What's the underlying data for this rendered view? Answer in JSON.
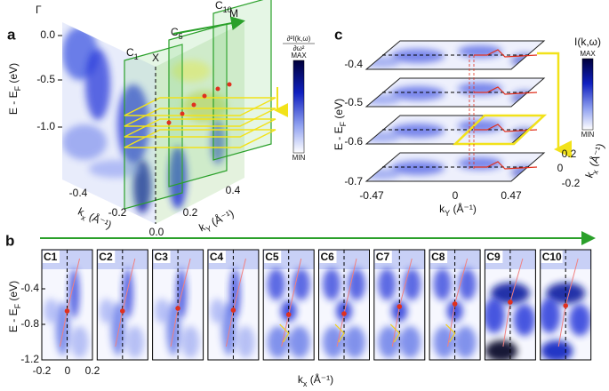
{
  "panel_a": {
    "label": "a",
    "points": [
      "Γ",
      "X",
      "M"
    ],
    "cuts": [
      {
        "text": "C",
        "sub": "1"
      },
      {
        "text": "C",
        "sub": "5"
      },
      {
        "text": "C",
        "sub": "10"
      }
    ],
    "y_label": {
      "text": "E - E",
      "sub": "F",
      "unit": " (eV)"
    },
    "y_ticks": [
      "0.0",
      "-0.5",
      "-1.0"
    ],
    "kx_label": {
      "text": "k",
      "sub": "x",
      "unit": " (Å⁻¹)"
    },
    "kx_ticks": [
      "-0.4",
      "-0.2",
      "0.0"
    ],
    "ky_label": {
      "text": "k",
      "sub": "Y",
      "unit": " (Å⁻¹)"
    },
    "ky_ticks": [
      "0.2",
      "0.4"
    ],
    "colorbar": {
      "numerator": "∂²I(k,ω)",
      "denominator": "∂ω²",
      "max": "MAX",
      "min": "MIN"
    }
  },
  "panel_b": {
    "label": "b",
    "cuts": [
      "C1",
      "C2",
      "C3",
      "C4",
      "C5",
      "C6",
      "C7",
      "C8",
      "C9",
      "C10"
    ],
    "y_label": {
      "text": "E - E",
      "sub": "F",
      "unit": " (eV)"
    },
    "y_ticks": [
      "-0.4",
      "-0.8",
      "-1.2"
    ],
    "x_ticks": [
      "-0.2",
      "0",
      "0.2"
    ],
    "x_label": {
      "text": "k",
      "sub": "x",
      "unit": " (Å⁻¹)"
    }
  },
  "panel_c": {
    "label": "c",
    "y_label": {
      "text": "E - E",
      "sub": "F",
      "unit": " (eV)"
    },
    "y_ticks": [
      "-0.4",
      "-0.5",
      "-0.6",
      "-0.7"
    ],
    "x_ticks": [
      "-0.47",
      "0",
      "0.47"
    ],
    "x_label": {
      "text": "k",
      "sub": "Y",
      "unit": " (Å⁻¹)"
    },
    "depth_ticks": [
      "0.2",
      "0",
      "-0.2"
    ],
    "depth_label": {
      "text": "k",
      "sub": "x",
      "unit": " (Å⁻¹)"
    },
    "colorbar": {
      "title": "I(k,ω)",
      "max": "MAX",
      "min": "MIN"
    }
  }
}
